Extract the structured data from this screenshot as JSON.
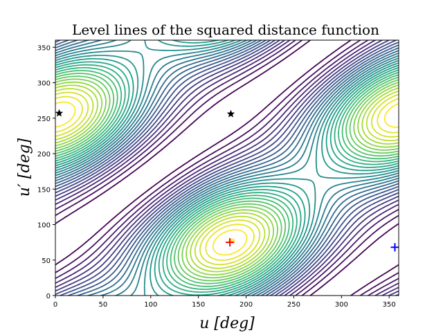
{
  "chart_data": {
    "type": "contour",
    "title": "Level lines of the squared distance function",
    "xlabel": "u [deg]",
    "ylabel": "u′ [deg]",
    "xlim": [
      0,
      360
    ],
    "ylim": [
      0,
      360
    ],
    "xticks": [
      "0",
      "50",
      "100",
      "150",
      "200",
      "250",
      "300",
      "350"
    ],
    "yticks": [
      "0",
      "50",
      "100",
      "150",
      "200",
      "250",
      "300",
      "350"
    ],
    "colormap": "viridis",
    "levels": 30,
    "grid": false,
    "markers": [
      {
        "kind": "star",
        "color": "#000000",
        "x": 4,
        "y": 257
      },
      {
        "kind": "star",
        "color": "#000000",
        "x": 184,
        "y": 256
      },
      {
        "kind": "dot",
        "color": "#f0e442",
        "x": 185,
        "y": 77
      },
      {
        "kind": "plus",
        "color": "#ff0000",
        "x": 183,
        "y": 75
      },
      {
        "kind": "plus",
        "color": "#0000ff",
        "x": 356,
        "y": 68
      }
    ]
  }
}
